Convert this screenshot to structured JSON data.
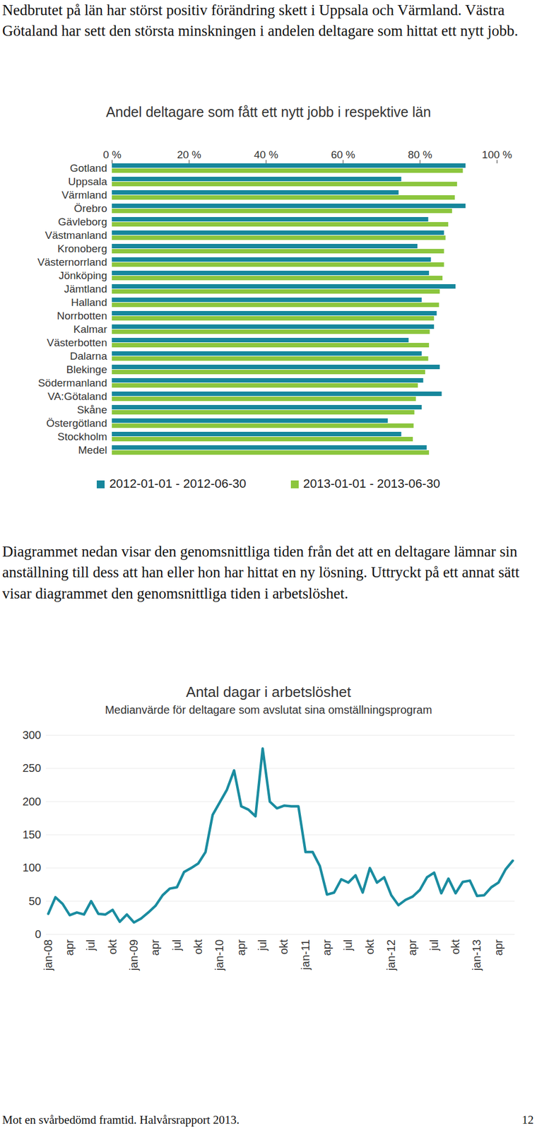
{
  "text": {
    "paragraph_1": "Nedbrutet på län har störst positiv förändring skett i Uppsala och Värmland. Västra Götaland har sett den största minskningen i andelen deltagare som hittat ett nytt jobb.",
    "paragraph_2": "Diagrammet nedan visar den genomsnittliga tiden från det att en deltagare lämnar sin anställning till dess att han eller hon har hittat en ny lösning. Uttryckt på ett annat sätt visar diagrammet den genomsnittliga tiden i arbetslöshet.",
    "footer": "Mot en svårbedömd framtid. Halvårsrapport 2013.",
    "page_number": "12"
  },
  "chart_data": [
    {
      "type": "bar",
      "orientation": "horizontal",
      "title": "Andel deltagare som fått ett nytt jobb i respektive län",
      "categories": [
        "Gotland",
        "Uppsala",
        "Värmland",
        "Örebro",
        "Gävleborg",
        "Västmanland",
        "Kronoberg",
        "Västernorrland",
        "Jönköping",
        "Jämtland",
        "Halland",
        "Norrbotten",
        "Kalmar",
        "Västerbotten",
        "Dalarna",
        "Blekinge",
        "Södermanland",
        "VA:Götaland",
        "Skåne",
        "Östergötland",
        "Stockholm",
        "Medel"
      ],
      "series": [
        {
          "name": "2012-01-01 - 2012-06-30",
          "color": "#17879c",
          "values": [
            91.9,
            75.2,
            74.5,
            91.9,
            82.2,
            86.3,
            79.4,
            82.9,
            82.4,
            89.3,
            80.5,
            84.4,
            83.7,
            77.1,
            80.5,
            85.2,
            80.9,
            85.7,
            80.5,
            71.7,
            75.2,
            81.8
          ]
        },
        {
          "name": "2013-01-01 - 2013-06-30",
          "color": "#8cc63e",
          "values": [
            91.2,
            89.7,
            89.1,
            88.4,
            87.4,
            86.7,
            86.3,
            86.3,
            85.9,
            85.2,
            85.0,
            83.7,
            82.6,
            82.4,
            82.2,
            81.4,
            79.5,
            79.0,
            78.6,
            78.4,
            78.2,
            82.4
          ]
        }
      ],
      "xlim": [
        0,
        100
      ],
      "xticks": [
        {
          "value": 0,
          "label": "0 %"
        },
        {
          "value": 20,
          "label": "20 %"
        },
        {
          "value": 40,
          "label": "40 %"
        },
        {
          "value": 60,
          "label": "60 %"
        },
        {
          "value": 80,
          "label": "80 %"
        },
        {
          "value": 100,
          "label": "100 %"
        }
      ],
      "legend": "bottom"
    },
    {
      "type": "line",
      "title": "Antal dagar i arbetslöshet",
      "subtitle": "Medianvärde för deltagare som avslutat sina omställningsprogram",
      "categories": [
        "jan-08",
        null,
        null,
        "apr",
        null,
        null,
        "jul",
        null,
        null,
        "okt",
        null,
        null,
        "jan-09",
        null,
        null,
        "apr",
        null,
        null,
        "jul",
        null,
        null,
        "okt",
        null,
        null,
        "jan-10",
        null,
        null,
        "apr",
        null,
        null,
        "jul",
        null,
        null,
        "okt",
        null,
        null,
        "jan-11",
        null,
        null,
        "apr",
        null,
        null,
        "jul",
        null,
        null,
        "okt",
        null,
        null,
        "jan-12",
        null,
        null,
        "apr",
        null,
        null,
        "jul",
        null,
        null,
        "okt",
        null,
        null,
        "jan-13",
        null,
        null,
        "apr",
        null,
        null
      ],
      "values": [
        31,
        56,
        46,
        29,
        33,
        30,
        50,
        31,
        30,
        37,
        19,
        30,
        18,
        24,
        33,
        43,
        59,
        69,
        71,
        94,
        100,
        107,
        124,
        180,
        199,
        218,
        247,
        193,
        188,
        178,
        280,
        200,
        190,
        194,
        193,
        193,
        124,
        124,
        103,
        60,
        63,
        83,
        78,
        89,
        63,
        100,
        78,
        86,
        59,
        44,
        52,
        57,
        67,
        86,
        93,
        62,
        84,
        62,
        79,
        81,
        58,
        59,
        71,
        78,
        98,
        111
      ],
      "color": "#1a8ca0",
      "ylim": [
        0,
        300
      ],
      "yticks": [
        0,
        50,
        100,
        150,
        200,
        250,
        300
      ],
      "grid": true
    }
  ]
}
